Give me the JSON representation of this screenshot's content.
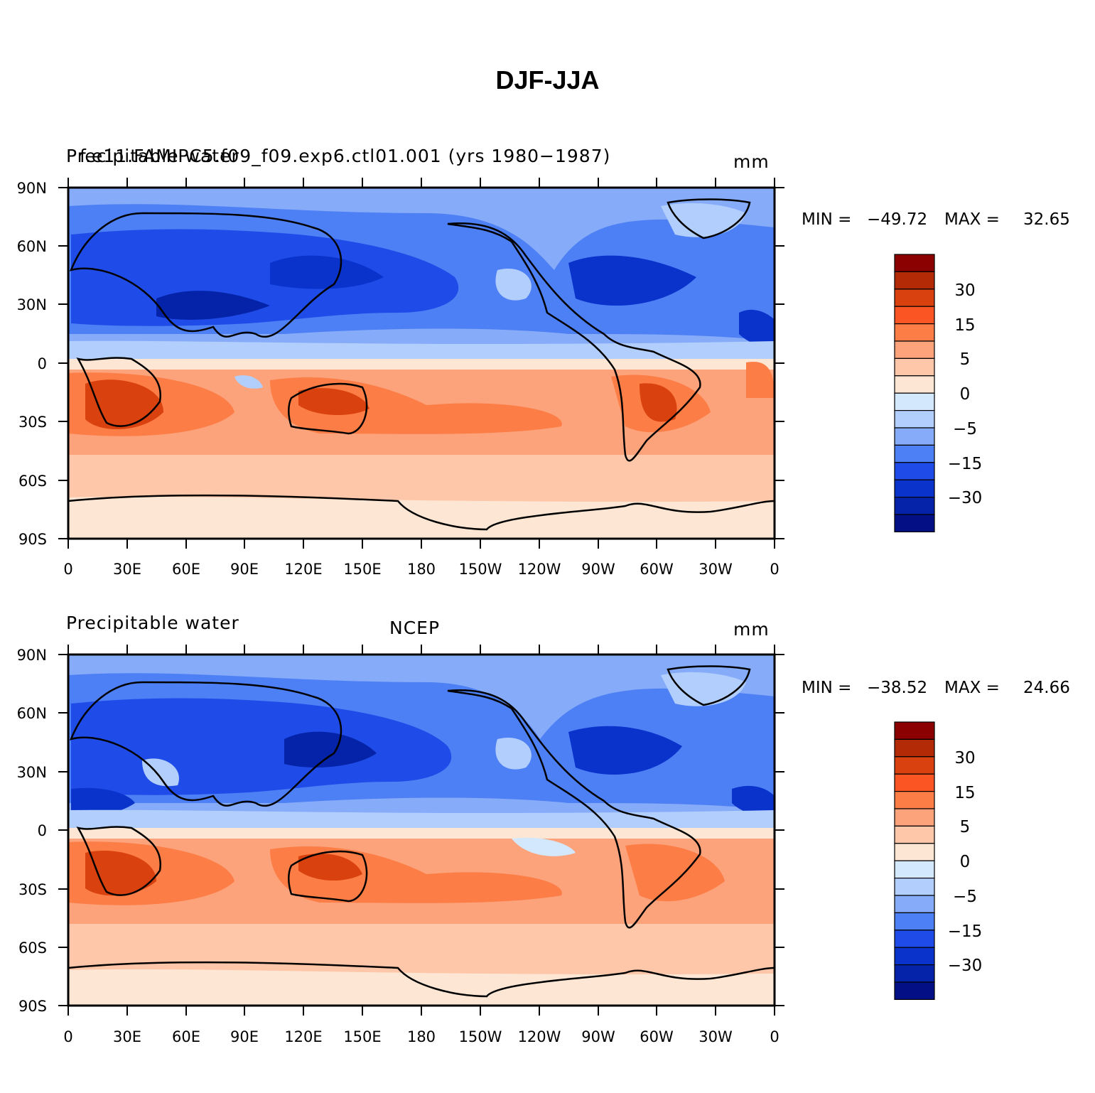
{
  "title": "DJF-JJA",
  "axes": {
    "lat_ticks": [
      "90N",
      "60N",
      "30N",
      "0",
      "30S",
      "60S",
      "90S"
    ],
    "lon_ticks": [
      "0",
      "30E",
      "60E",
      "90E",
      "120E",
      "150E",
      "180",
      "150W",
      "120W",
      "90W",
      "60W",
      "30W",
      "0"
    ]
  },
  "colorbar": {
    "labels": [
      "30",
      "15",
      "5",
      "0",
      "−5",
      "−15",
      "−30"
    ],
    "colors": [
      "#8b0000",
      "#b22a06",
      "#d9410f",
      "#fa5523",
      "#fc7d46",
      "#fca37c",
      "#fec7a9",
      "#fde7d4",
      "#d3e8fd",
      "#b2cefc",
      "#86abf9",
      "#4d7ff5",
      "#1f4ce8",
      "#0a33cc",
      "#0523a8",
      "#020f85"
    ]
  },
  "panels": [
    {
      "left_label": "Precipitable water",
      "center_label": "f.e11.FAMIPC5.f09_f09.exp6.ctl01.001 (yrs 1980−1987)",
      "units": "mm",
      "min_label": "MIN =",
      "min": "−49.72",
      "max_label": "MAX =",
      "max": "32.65"
    },
    {
      "left_label": "Precipitable water",
      "center_label": "NCEP",
      "units": "mm",
      "min_label": "MIN =",
      "min": "−38.52",
      "max_label": "MAX =",
      "max": "24.66"
    }
  ]
}
